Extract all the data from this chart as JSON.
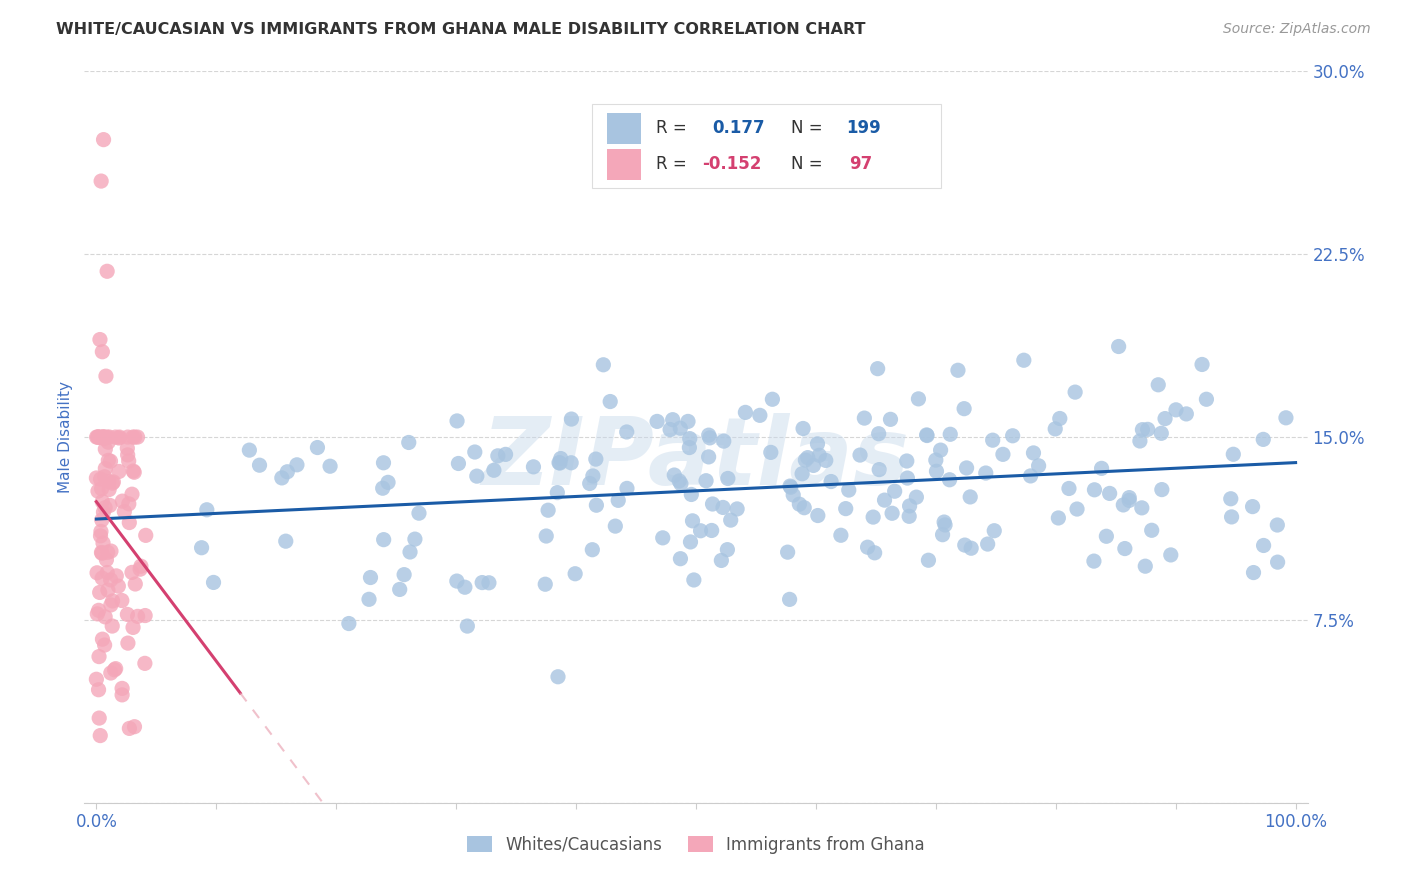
{
  "title": "WHITE/CAUCASIAN VS IMMIGRANTS FROM GHANA MALE DISABILITY CORRELATION CHART",
  "source": "Source: ZipAtlas.com",
  "ylabel": "Male Disability",
  "xlim": [
    -0.01,
    1.01
  ],
  "ylim": [
    0,
    0.3
  ],
  "yticks": [
    0.0,
    0.075,
    0.15,
    0.225,
    0.3
  ],
  "yticklabels": [
    "",
    "7.5%",
    "15.0%",
    "22.5%",
    "30.0%"
  ],
  "xticks": [
    0.0,
    0.1,
    0.2,
    0.3,
    0.4,
    0.5,
    0.6,
    0.7,
    0.8,
    0.9,
    1.0
  ],
  "xticklabels": [
    "0.0%",
    "",
    "",
    "",
    "",
    "",
    "",
    "",
    "",
    "",
    "100.0%"
  ],
  "blue_R": 0.177,
  "blue_N": 199,
  "pink_R": -0.152,
  "pink_N": 97,
  "blue_color": "#a8c4e0",
  "pink_color": "#f4a7b9",
  "blue_line_color": "#1a5ba6",
  "pink_line_color": "#d44070",
  "pink_dash_color": "#e8a0b0",
  "legend_label_blue": "Whites/Caucasians",
  "legend_label_pink": "Immigrants from Ghana",
  "watermark": "ZIPatlas",
  "background_color": "#ffffff",
  "title_color": "#333333",
  "tick_color": "#4472c4",
  "grid_color": "#cccccc",
  "seed_blue": 42,
  "seed_pink": 7
}
